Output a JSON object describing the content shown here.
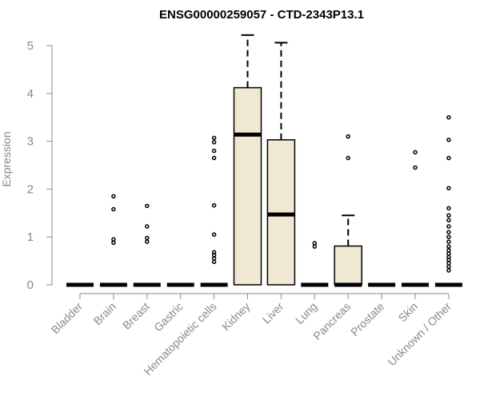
{
  "chart_data": {
    "type": "box",
    "title": "ENSG00000259057 - CTD-2343P13.1",
    "xlabel": "",
    "ylabel": "Expression",
    "ylim": [
      0,
      5.25
    ],
    "yticks": [
      0,
      1,
      2,
      3,
      4,
      5
    ],
    "box_fill": "#efe8d2",
    "categories": [
      "Bladder",
      "Brain",
      "Breast",
      "Gastric",
      "Hematopoietic cells",
      "Kidney",
      "Liver",
      "Lung",
      "Pancreas",
      "Prostate",
      "Skin",
      "Unknown / Other"
    ],
    "boxes": [
      {
        "category": "Bladder",
        "min": 0,
        "q1": 0,
        "median": 0,
        "q3": 0,
        "max": 0,
        "outliers": []
      },
      {
        "category": "Brain",
        "min": 0,
        "q1": 0,
        "median": 0,
        "q3": 0,
        "max": 0,
        "outliers": [
          0.88,
          0.95,
          1.58,
          1.85
        ]
      },
      {
        "category": "Breast",
        "min": 0,
        "q1": 0,
        "median": 0,
        "q3": 0,
        "max": 0,
        "outliers": [
          0.9,
          0.98,
          1.22,
          1.65
        ]
      },
      {
        "category": "Gastric",
        "min": 0,
        "q1": 0,
        "median": 0,
        "q3": 0,
        "max": 0,
        "outliers": []
      },
      {
        "category": "Hematopoietic cells",
        "min": 0,
        "q1": 0,
        "median": 0,
        "q3": 0,
        "max": 0,
        "outliers": [
          0.48,
          0.55,
          0.62,
          0.68,
          1.05,
          1.66,
          2.65,
          2.8,
          2.98,
          3.07
        ]
      },
      {
        "category": "Kidney",
        "min": 0,
        "q1": 0,
        "median": 3.14,
        "q3": 4.12,
        "max": 5.22,
        "outliers": []
      },
      {
        "category": "Liver",
        "min": 0,
        "q1": 0,
        "median": 1.47,
        "q3": 3.03,
        "max": 5.06,
        "outliers": []
      },
      {
        "category": "Lung",
        "min": 0,
        "q1": 0,
        "median": 0,
        "q3": 0,
        "max": 0,
        "outliers": [
          0.8,
          0.87
        ]
      },
      {
        "category": "Pancreas",
        "min": 0,
        "q1": 0,
        "median": 0,
        "q3": 0.81,
        "max": 1.45,
        "outliers": [
          2.65,
          3.1
        ]
      },
      {
        "category": "Prostate",
        "min": 0,
        "q1": 0,
        "median": 0,
        "q3": 0,
        "max": 0,
        "outliers": []
      },
      {
        "category": "Skin",
        "min": 0,
        "q1": 0,
        "median": 0,
        "q3": 0,
        "max": 0,
        "outliers": [
          2.45,
          2.77
        ]
      },
      {
        "category": "Unknown / Other",
        "min": 0,
        "q1": 0,
        "median": 0,
        "q3": 0,
        "max": 0,
        "outliers": [
          0.3,
          0.38,
          0.45,
          0.52,
          0.58,
          0.65,
          0.72,
          0.8,
          0.9,
          1.0,
          1.1,
          1.22,
          1.35,
          1.45,
          1.6,
          2.02,
          2.65,
          3.03,
          3.5
        ]
      }
    ]
  }
}
